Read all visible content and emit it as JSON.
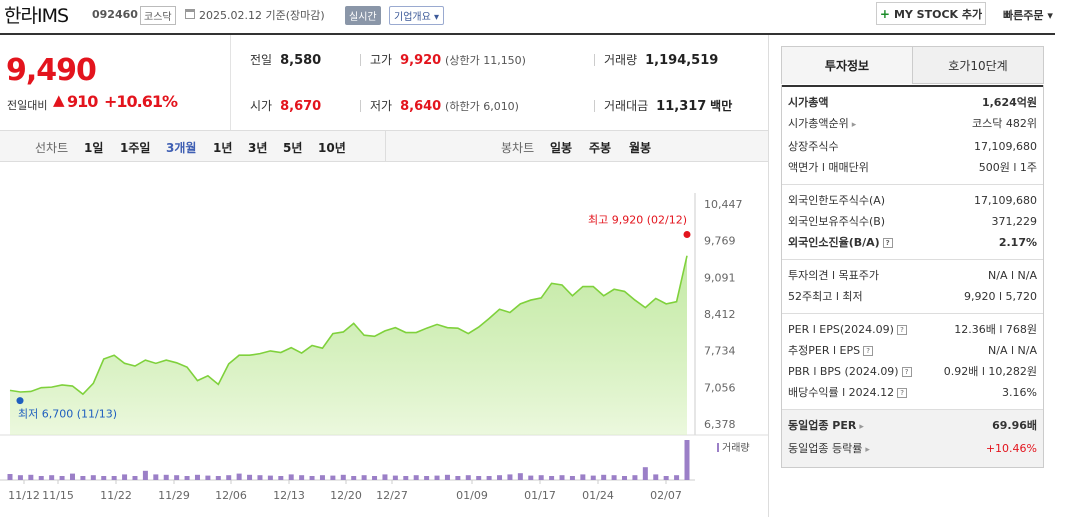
{
  "header": {
    "name": "한라IMS",
    "code": "092460",
    "market": "코스닥",
    "date": "2025.02.12 기준(장마감)",
    "realtime": "실시간",
    "company_overview": "기업개요",
    "mystock": "MY STOCK 추가",
    "quick_order": "빠른주문"
  },
  "price": {
    "current": "9,490",
    "change_label": "전일대비",
    "change": "910",
    "rate": "+10.61%"
  },
  "metrics": {
    "prev_close_label": "전일",
    "prev_close": "8,580",
    "high_label": "고가",
    "high": "9,920",
    "upper_limit": "(상한가 11,150)",
    "volume_label": "거래량",
    "volume": "1,194,519",
    "open_label": "시가",
    "open": "8,670",
    "low_label": "저가",
    "low": "8,640",
    "lower_limit": "(하한가 6,010)",
    "amount_label": "거래대금",
    "amount": "11,317",
    "amount_unit": "백만"
  },
  "toolbar": {
    "line_chart": "선차트",
    "periods": [
      "1일",
      "1주일",
      "3개월",
      "1년",
      "3년",
      "5년",
      "10년"
    ],
    "active_period": "3개월",
    "candle_chart": "봉차트",
    "candle_periods": [
      "일봉",
      "주봉",
      "월봉"
    ]
  },
  "chart_data": {
    "type": "area",
    "y_ticks": [
      "10,447",
      "9,769",
      "9,091",
      "8,412",
      "7,734",
      "7,056",
      "6,378"
    ],
    "ylim": [
      6378,
      10447
    ],
    "x_ticks": [
      "11/12",
      "11/15",
      "11/22",
      "11/29",
      "12/06",
      "12/13",
      "12/20",
      "12/27",
      "01/09",
      "01/17",
      "01/24",
      "02/07"
    ],
    "values": [
      7000,
      6970,
      6980,
      7050,
      7060,
      7100,
      7080,
      6930,
      7130,
      7580,
      7650,
      7500,
      7450,
      7560,
      7500,
      7560,
      7510,
      7430,
      7180,
      7270,
      7110,
      7490,
      7650,
      7650,
      7680,
      7730,
      7700,
      7790,
      7690,
      7830,
      7780,
      8050,
      8080,
      8240,
      8020,
      8000,
      8100,
      8160,
      8070,
      8070,
      8150,
      8220,
      8160,
      8150,
      8050,
      8170,
      8330,
      8500,
      8440,
      8600,
      8670,
      8710,
      8980,
      8950,
      8750,
      8920,
      8920,
      8750,
      8870,
      8830,
      8670,
      8530,
      8700,
      8600,
      8640,
      9490
    ],
    "max_label": "최고 9,920 (02/12)",
    "max_value": 9920,
    "min_label": "최저 6,700 (11/13)",
    "min_value": 6700,
    "volume_label": "거래량",
    "volume": [
      0.15,
      0.12,
      0.13,
      0.1,
      0.12,
      0.1,
      0.16,
      0.1,
      0.12,
      0.1,
      0.1,
      0.14,
      0.1,
      0.23,
      0.14,
      0.13,
      0.12,
      0.1,
      0.13,
      0.11,
      0.1,
      0.12,
      0.16,
      0.13,
      0.12,
      0.11,
      0.1,
      0.14,
      0.12,
      0.1,
      0.12,
      0.11,
      0.13,
      0.1,
      0.12,
      0.1,
      0.14,
      0.11,
      0.1,
      0.12,
      0.1,
      0.11,
      0.13,
      0.1,
      0.12,
      0.1,
      0.1,
      0.12,
      0.14,
      0.17,
      0.11,
      0.12,
      0.1,
      0.12,
      0.1,
      0.14,
      0.11,
      0.13,
      0.12,
      0.1,
      0.12,
      0.32,
      0.14,
      0.1,
      0.12,
      1.0
    ],
    "line_color": "#7fd13c",
    "fill_color": "#dff4c8",
    "volume_color": "#9b7fc7"
  },
  "tabs": {
    "invest_info": "투자정보",
    "orderbook": "호가10단계"
  },
  "invest": {
    "market_cap_label": "시가총액",
    "market_cap": "1,624억원",
    "market_cap_rank_label": "시가총액순위",
    "market_cap_rank": "코스닥 482위",
    "listed_shares_label": "상장주식수",
    "listed_shares": "17,109,680",
    "face_unit_label": "액면가 l 매매단위",
    "face_unit": "500원 l 1주",
    "foreign_limit_label": "외국인한도주식수(A)",
    "foreign_limit": "17,109,680",
    "foreign_hold_label": "외국인보유주식수(B)",
    "foreign_hold": "371,229",
    "foreign_ratio_label": "외국인소진율(B/A)",
    "foreign_ratio": "2.17%",
    "opinion_label": "투자의견 l 목표주가",
    "opinion": "N/A l N/A",
    "week52_label": "52주최고 l 최저",
    "week52": "9,920 l 5,720",
    "per_eps_label": "PER l EPS(2024.09)",
    "per_eps": "12.36배 l 768원",
    "est_per_label": "추정PER l EPS",
    "est_per": "N/A l N/A",
    "pbr_bps_label": "PBR l BPS (2024.09)",
    "pbr_bps": "0.92배 l 10,282원",
    "dividend_label": "배당수익률 l 2024.12",
    "dividend": "3.16%",
    "sector_per_label": "동일업종 PER",
    "sector_per": "69.96배",
    "sector_rate_label": "동일업종 등락률",
    "sector_rate": "+10.46%"
  }
}
